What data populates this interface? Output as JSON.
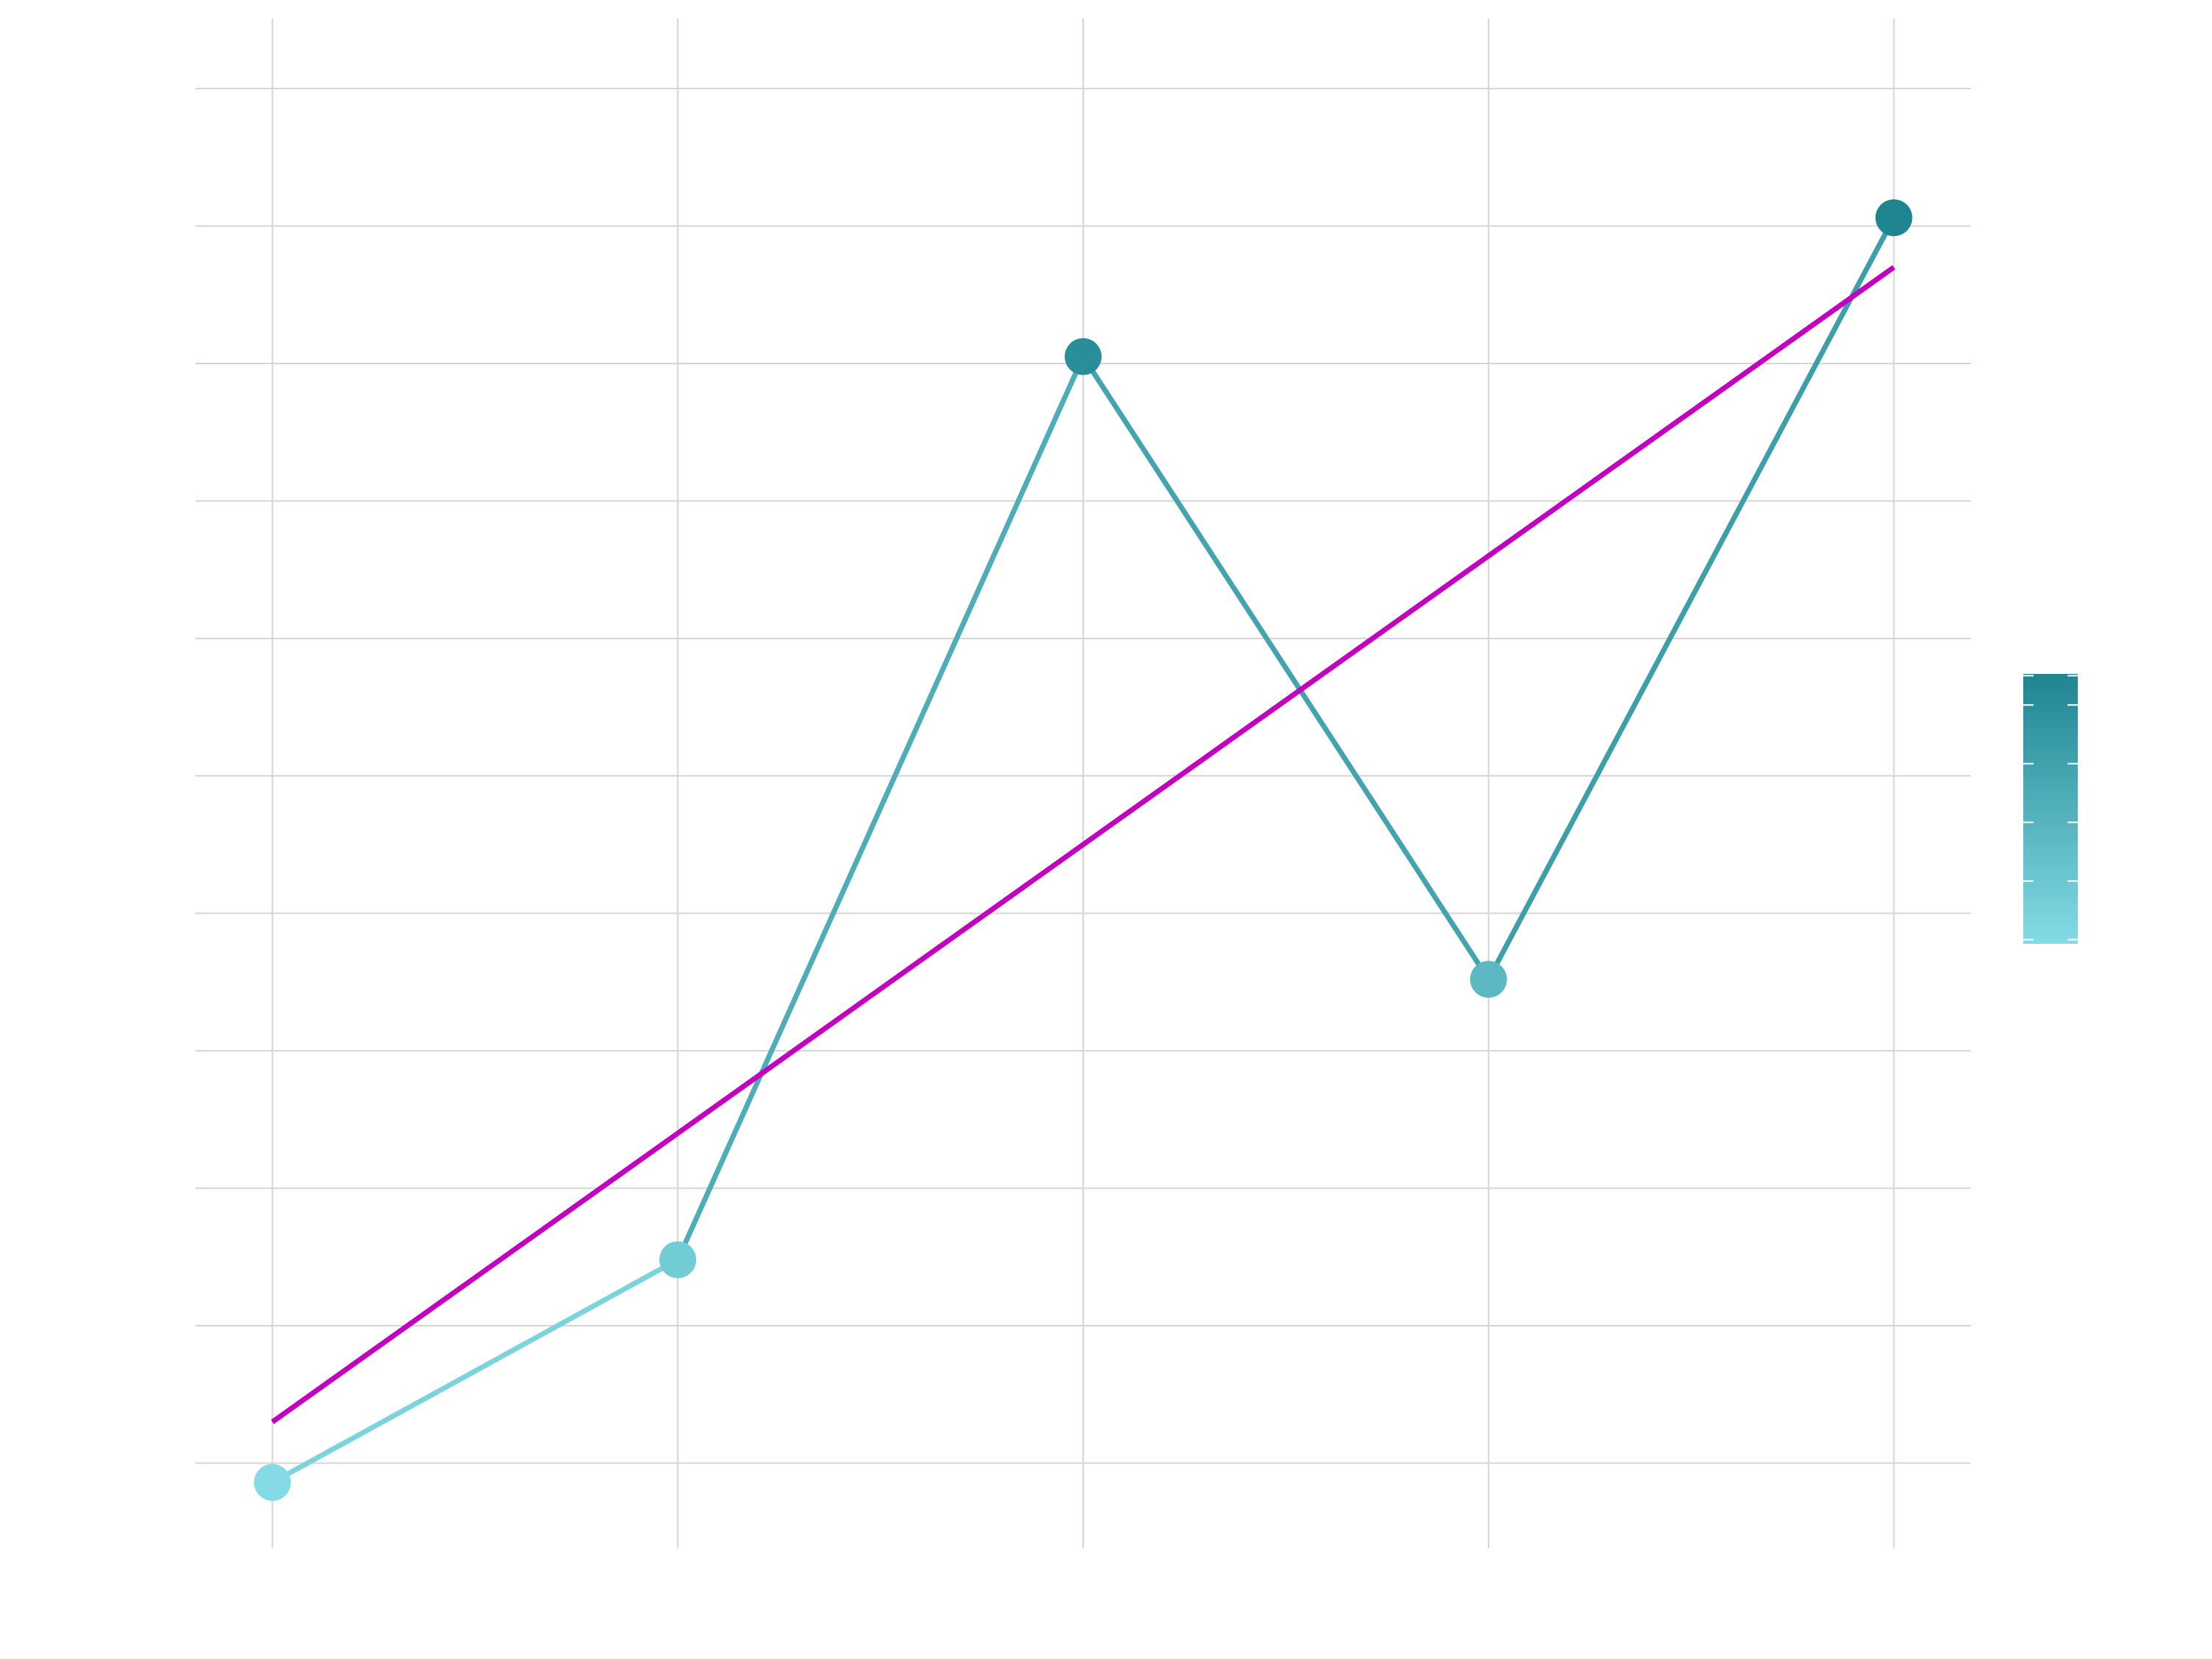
{
  "chart_data": {
    "type": "line",
    "x": [
      1,
      2,
      3,
      4,
      5
    ],
    "series": [
      {
        "values": [
          0.86,
          2.48,
          9.05,
          4.52,
          10.06
        ]
      },
      {
        "kind": "trend-line",
        "values": [
          1.3,
          3.7,
          5.0,
          7.3,
          9.7
        ]
      }
    ],
    "xlim": [
      0.81,
      5.19
    ],
    "ylim": [
      0.38,
      11.51
    ],
    "y_gridlines": [
      1,
      2,
      3,
      4,
      5,
      6,
      7,
      8,
      9,
      10,
      11
    ],
    "grid": true,
    "colorbar": {
      "position": "right",
      "range": [
        0.86,
        10.06
      ],
      "ticks": [
        1,
        3,
        5,
        7,
        9,
        10
      ],
      "color_low": "#84dbe5",
      "color_high": "#1f8591"
    },
    "colors": {
      "trend": "#c400c0",
      "grid": "#d4d5d8",
      "low": "#84dbe5",
      "high": "#1f8591"
    }
  }
}
